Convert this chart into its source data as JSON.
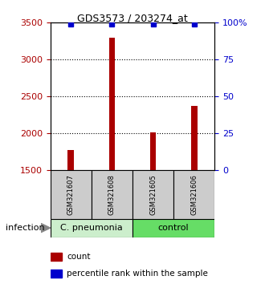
{
  "title": "GDS3573 / 203274_at",
  "categories": [
    "GSM321607",
    "GSM321608",
    "GSM321605",
    "GSM321606"
  ],
  "bar_values": [
    1780,
    3300,
    2010,
    2370
  ],
  "percentile_values": [
    99,
    99,
    99,
    99
  ],
  "ylim_left": [
    1500,
    3500
  ],
  "ylim_right": [
    0,
    100
  ],
  "yticks_left": [
    1500,
    2000,
    2500,
    3000,
    3500
  ],
  "yticks_right": [
    0,
    25,
    50,
    75,
    100
  ],
  "ytick_labels_right": [
    "0",
    "25",
    "50",
    "75",
    "100%"
  ],
  "bar_color": "#aa0000",
  "percentile_color": "#0000cc",
  "dotted_lines": [
    2000,
    2500,
    3000
  ],
  "group_labels": [
    "C. pneumonia",
    "control"
  ],
  "group_color_0": "#cceecc",
  "group_color_1": "#66dd66",
  "infection_label": "infection",
  "legend_items": [
    {
      "color": "#aa0000",
      "label": "count"
    },
    {
      "color": "#0000cc",
      "label": "percentile rank within the sample"
    }
  ],
  "bar_width": 0.15,
  "title_fontsize": 9,
  "tick_fontsize": 8,
  "label_fontsize": 8
}
